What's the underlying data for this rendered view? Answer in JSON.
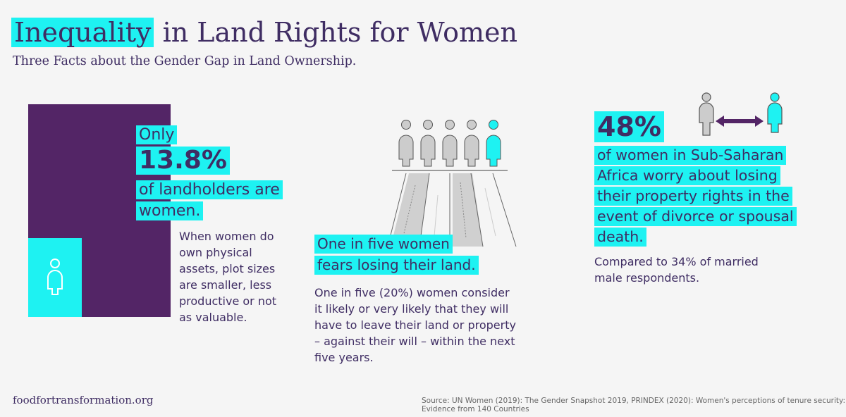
{
  "title": {
    "highlight": "Inequality",
    "rest": "in Land Rights for Women"
  },
  "subtitle": "Three Facts about the Gender Gap in Land Ownership.",
  "fact1": {
    "only": "Only",
    "value": "13.8%",
    "line1": "of landholders are",
    "line2": "women.",
    "description": "When women do own physical assets, plot sizes are smaller, less productive or not as valuable.",
    "share": 0.138
  },
  "fact2": {
    "line1": "One in five women",
    "line2": "fears losing their land.",
    "description": "One in five (20%) women consider it likely or very likely that they will have to leave their land or property – against their will – within the next five years.",
    "highlighted_of": "1 of 5"
  },
  "fact3": {
    "value": "48%",
    "lines": [
      "of women in Sub-Saharan",
      "Africa worry about losing",
      "their property rights in the",
      "event of divorce or spousal",
      "death."
    ],
    "description": "Compared to 34% of married male respondents."
  },
  "footer": {
    "site": "foodfortransformation.org",
    "source": "Source: UN Women (2019): The Gender Snapshot 2019, PRINDEX (2020): Women's perceptions of tenure security: Evidence from 140 Countries"
  },
  "colors": {
    "purple": "#532566",
    "cyan": "#1ef2f2",
    "text": "#3f2d63",
    "background": "#f5f5f5"
  },
  "icons": [
    "woman-icon",
    "person-icon",
    "double-arrow-icon",
    "road-icon"
  ]
}
